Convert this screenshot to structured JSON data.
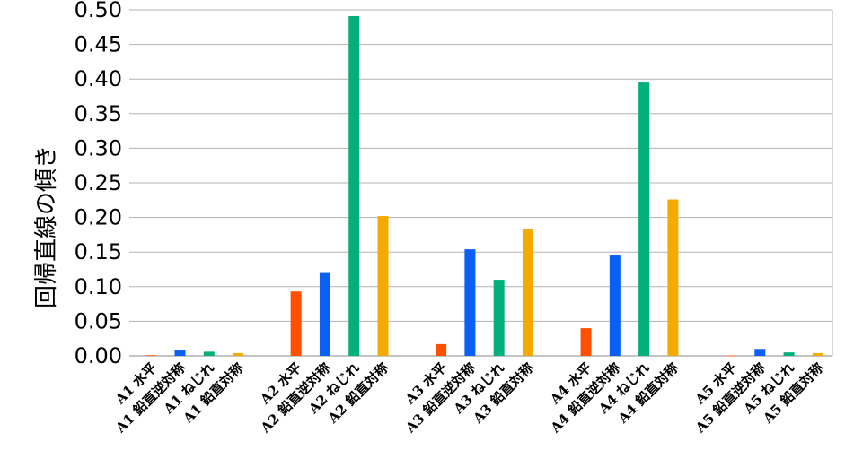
{
  "chart_data": {
    "type": "bar",
    "ylabel": "回帰直線の傾き",
    "xlabel": "",
    "ylim": [
      0,
      0.5
    ],
    "yticks": [
      "0.00",
      "0.05",
      "0.10",
      "0.15",
      "0.20",
      "0.25",
      "0.30",
      "0.35",
      "0.40",
      "0.45",
      "0.50"
    ],
    "grid": true,
    "colors": {
      "水平": "#ff5000",
      "鉛直逆対称": "#0a5ff5",
      "ねじれ": "#03af7a",
      "鉛直対称": "#f5aa00"
    },
    "groups": [
      {
        "name": "A1",
        "bars": [
          {
            "label": "A1 水平",
            "type": "水平",
            "value": 0.001
          },
          {
            "label": "A1 鉛直逆対称",
            "type": "鉛直逆対称",
            "value": 0.009
          },
          {
            "label": "A1 ねじれ",
            "type": "ねじれ",
            "value": 0.006
          },
          {
            "label": "A1 鉛直対称",
            "type": "鉛直対称",
            "value": 0.004
          }
        ]
      },
      {
        "name": "A2",
        "bars": [
          {
            "label": "A2 水平",
            "type": "水平",
            "value": 0.093
          },
          {
            "label": "A2 鉛直逆対称",
            "type": "鉛直逆対称",
            "value": 0.121
          },
          {
            "label": "A2 ねじれ",
            "type": "ねじれ",
            "value": 0.491
          },
          {
            "label": "A2 鉛直対称",
            "type": "鉛直対称",
            "value": 0.202
          }
        ]
      },
      {
        "name": "A3",
        "bars": [
          {
            "label": "A3 水平",
            "type": "水平",
            "value": 0.017
          },
          {
            "label": "A3 鉛直逆対称",
            "type": "鉛直逆対称",
            "value": 0.154
          },
          {
            "label": "A3 ねじれ",
            "type": "ねじれ",
            "value": 0.11
          },
          {
            "label": "A3 鉛直対称",
            "type": "鉛直対称",
            "value": 0.183
          }
        ]
      },
      {
        "name": "A4",
        "bars": [
          {
            "label": "A4 水平",
            "type": "水平",
            "value": 0.04
          },
          {
            "label": "A4 鉛直逆対称",
            "type": "鉛直逆対称",
            "value": 0.145
          },
          {
            "label": "A4 ねじれ",
            "type": "ねじれ",
            "value": 0.395
          },
          {
            "label": "A4 鉛直対称",
            "type": "鉛直対称",
            "value": 0.226
          }
        ]
      },
      {
        "name": "A5",
        "bars": [
          {
            "label": "A5 水平",
            "type": "水平",
            "value": 0.0005
          },
          {
            "label": "A5 鉛直逆対称",
            "type": "鉛直逆対称",
            "value": 0.01
          },
          {
            "label": "A5 ねじれ",
            "type": "ねじれ",
            "value": 0.005
          },
          {
            "label": "A5 鉛直対称",
            "type": "鉛直対称",
            "value": 0.004
          }
        ]
      }
    ]
  }
}
